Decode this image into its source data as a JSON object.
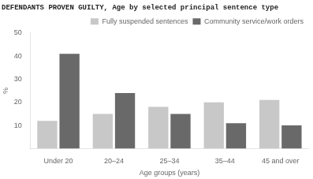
{
  "chart_data": {
    "type": "bar",
    "title": "DEFENDANTS PROVEN GUILTY, Age by selected principal sentence type",
    "xlabel": "Age groups (years)",
    "ylabel": "%",
    "categories": [
      "Under 20",
      "20–24",
      "25–34",
      "35–44",
      "45 and over"
    ],
    "series": [
      {
        "name": "Fully suspended sentences",
        "color": "#c8c8c8",
        "values": [
          12,
          15,
          18,
          20,
          21
        ]
      },
      {
        "name": "Community service/work orders",
        "color": "#696969",
        "values": [
          41,
          24,
          15,
          11,
          10
        ]
      }
    ],
    "ylim": [
      0,
      50
    ],
    "yticks": [
      {
        "value": 0,
        "label": ""
      },
      10,
      20,
      30,
      40,
      50
    ],
    "grid": false,
    "legend": "upper right"
  }
}
